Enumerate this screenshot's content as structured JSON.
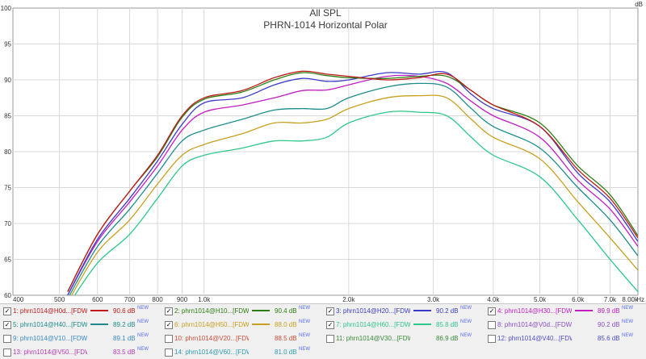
{
  "chart_data": {
    "type": "line",
    "title": "All SPL",
    "subtitle": "PHRN-1014 Horizontal Polar",
    "y_unit": "dB",
    "x_unit": "Hz",
    "xlim": [
      400,
      8000
    ],
    "ylim": [
      60,
      100
    ],
    "x_scale": "log",
    "grid": true,
    "x_ticks": [
      {
        "value": 400,
        "label": "400"
      },
      {
        "value": 500,
        "label": "500"
      },
      {
        "value": 600,
        "label": "600"
      },
      {
        "value": 700,
        "label": "700"
      },
      {
        "value": 800,
        "label": "800"
      },
      {
        "value": 900,
        "label": "900"
      },
      {
        "value": 1000,
        "label": "1.0k"
      },
      {
        "value": 2000,
        "label": "2.0k"
      },
      {
        "value": 3000,
        "label": "3.0k"
      },
      {
        "value": 4000,
        "label": "4.0k"
      },
      {
        "value": 5000,
        "label": "5.0k"
      },
      {
        "value": 6000,
        "label": "6.0k"
      },
      {
        "value": 7000,
        "label": "7.0k"
      },
      {
        "value": 8000,
        "label": "8.00k"
      }
    ],
    "y_ticks": [
      "60",
      "65",
      "70",
      "75",
      "80",
      "85",
      "90",
      "95",
      "100"
    ],
    "legend_position": "bottom",
    "x": [
      520,
      600,
      700,
      800,
      900,
      1000,
      1200,
      1400,
      1600,
      1800,
      2000,
      2400,
      2800,
      3200,
      3600,
      4000,
      5000,
      6000,
      7000,
      8000
    ],
    "series": [
      {
        "name": "1: phrn1014@H0d...[FDW]",
        "value_label": "90.6 dB",
        "checked": true,
        "color": "#c01a1a",
        "values": [
          60.5,
          68.5,
          74.5,
          79.5,
          85.0,
          87.5,
          88.5,
          90.3,
          91.2,
          90.8,
          90.5,
          90.0,
          90.3,
          90.8,
          88.5,
          86.5,
          83.5,
          77.5,
          73.5,
          68.0
        ]
      },
      {
        "name": "2: phrn1014@H10...[FDW]",
        "value_label": "90.4 dB",
        "checked": true,
        "color": "#2e7d12",
        "values": [
          60.5,
          68.5,
          74.5,
          79.3,
          84.8,
          87.3,
          88.3,
          90.0,
          91.0,
          90.6,
          90.3,
          90.2,
          90.5,
          90.5,
          88.5,
          86.5,
          84.0,
          78.0,
          74.0,
          68.3
        ]
      },
      {
        "name": "3: phrn1014@H20...[FDW]",
        "value_label": "90.2 dB",
        "checked": true,
        "color": "#3b3bc8",
        "values": [
          60.0,
          67.8,
          73.5,
          78.7,
          83.8,
          86.8,
          87.5,
          89.3,
          90.2,
          89.8,
          90.0,
          91.0,
          90.8,
          91.0,
          88.0,
          86.0,
          83.5,
          77.0,
          73.0,
          67.5
        ]
      },
      {
        "name": "4: phrn1014@H30...[FDW]",
        "value_label": "89.9 dB",
        "checked": true,
        "color": "#c21ec2",
        "values": [
          60.0,
          67.5,
          73.0,
          78.0,
          83.0,
          85.5,
          86.5,
          87.5,
          88.5,
          88.6,
          89.3,
          90.5,
          90.5,
          89.5,
          87.0,
          85.0,
          82.0,
          76.0,
          72.0,
          66.8
        ]
      },
      {
        "name": "5: phrn1014@H40...[FDW]",
        "value_label": "89.2 dB",
        "checked": true,
        "color": "#1e8c8c",
        "values": [
          59.5,
          66.8,
          72.0,
          77.0,
          81.5,
          83.0,
          84.5,
          85.8,
          86.0,
          86.0,
          87.5,
          89.0,
          89.5,
          89.0,
          86.0,
          83.5,
          80.5,
          75.0,
          70.5,
          65.5
        ]
      },
      {
        "name": "6: phrn1014@H50...[FDW]",
        "value_label": "88.0 dB",
        "checked": true,
        "color": "#c8a020",
        "values": [
          59.0,
          66.0,
          70.5,
          75.5,
          79.5,
          81.0,
          82.5,
          84.0,
          84.0,
          84.5,
          86.0,
          87.5,
          87.8,
          87.5,
          84.5,
          82.0,
          79.0,
          73.0,
          68.0,
          63.5
        ]
      },
      {
        "name": "7: phrn1014@H60...[FDW]",
        "value_label": "85.8 dB",
        "checked": true,
        "color": "#2ec88a",
        "values": [
          58.5,
          64.5,
          68.5,
          73.5,
          78.0,
          79.5,
          80.5,
          81.5,
          81.5,
          82.0,
          84.0,
          85.5,
          85.5,
          85.0,
          82.0,
          79.5,
          76.5,
          70.5,
          65.0,
          60.5
        ]
      }
    ]
  },
  "legend_items": [
    {
      "label": "1: phrn1014@H0d...[FDW]",
      "value": "90.6 dB",
      "badge": "NEW",
      "checked": true,
      "color": "#c01a1a"
    },
    {
      "label": "2: phrn1014@H10...[FDW]",
      "value": "90.4 dB",
      "badge": "NEW",
      "checked": true,
      "color": "#2e7d12"
    },
    {
      "label": "3: phrn1014@H20...[FDW]",
      "value": "90.2 dB",
      "badge": "NEW",
      "checked": true,
      "color": "#3b3bc8"
    },
    {
      "label": "4: phrn1014@H30...[FDW]",
      "value": "89.9 dB",
      "badge": "NEW",
      "checked": true,
      "color": "#c21ec2"
    },
    {
      "label": "5: phrn1014@H40...[FDW]",
      "value": "89.2 dB",
      "badge": "NEW",
      "checked": true,
      "color": "#1e8c8c"
    },
    {
      "label": "6: phrn1014@H50...[FDW]",
      "value": "88.0 dB",
      "badge": "NEW",
      "checked": true,
      "color": "#c8a020"
    },
    {
      "label": "7: phrn1014@H60...[FDW]",
      "value": "85.8 dB",
      "badge": "NEW",
      "checked": true,
      "color": "#2ec88a"
    },
    {
      "label": "8: phrn1014@V0d...[FDW]",
      "value": "90.2 dB",
      "badge": "NEW",
      "checked": false,
      "color": "#8a4ec8"
    },
    {
      "label": "9: phrn1014@V10...[FDW]",
      "value": "89.1 dB",
      "badge": "NEW",
      "checked": false,
      "color": "#3a8ac8"
    },
    {
      "label": "10: phrn1014@V20...[FDW]",
      "value": "88.5 dB",
      "badge": "NEW",
      "checked": false,
      "color": "#c84e3a"
    },
    {
      "label": "11: phrn1014@V30...[FDW]",
      "value": "86.9 dB",
      "badge": "NEW",
      "checked": false,
      "color": "#3a8a3a"
    },
    {
      "label": "12: phrn1014@V40...[FDW]",
      "value": "85.6 dB",
      "badge": "NEW",
      "checked": false,
      "color": "#4e4ec8"
    },
    {
      "label": "13: phrn1014@V50...[FDW]",
      "value": "83.5 dB",
      "badge": "NEW",
      "checked": false,
      "color": "#b83ab8"
    },
    {
      "label": "14: phrn1014@V60...[FDW]",
      "value": "81.0 dB",
      "badge": "NEW",
      "checked": false,
      "color": "#2e9ab0"
    }
  ],
  "colors": {
    "plot_bg": "#ffffff",
    "grid": "#d9d9d9",
    "legend_bg": "#f0f0f0"
  }
}
